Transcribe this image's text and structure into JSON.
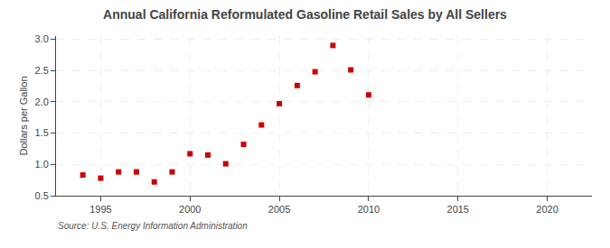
{
  "chart_data": {
    "type": "scatter",
    "title": "Annual California Reformulated Gasoline Retail Sales by All Sellers",
    "y_label": "Dollars per Gallon",
    "annotations": [
      "Source: U.S. Energy Information Administration"
    ],
    "x": [
      1994,
      1995,
      1996,
      1997,
      1998,
      1999,
      2000,
      2001,
      2002,
      2003,
      2004,
      2005,
      2006,
      2007,
      2008,
      2009,
      2010
    ],
    "values": [
      0.83,
      0.78,
      0.88,
      0.88,
      0.72,
      0.88,
      1.17,
      1.15,
      1.01,
      1.32,
      1.63,
      1.97,
      2.26,
      2.48,
      2.9,
      2.51,
      2.11
    ],
    "color": "#cc0000",
    "marker": "square",
    "xlim": [
      1992.5,
      2022.5
    ],
    "ylim": [
      0.5,
      3.05
    ],
    "xticks": [
      1995,
      2000,
      2005,
      2010,
      2015,
      2020
    ],
    "yticks": [
      0.5,
      {
        "value": 1.0,
        "label": "1.0"
      },
      1.5,
      {
        "value": 2.0,
        "label": "2.0"
      },
      2.5,
      {
        "value": 3.0,
        "label": "3.0"
      }
    ],
    "grid": true
  }
}
